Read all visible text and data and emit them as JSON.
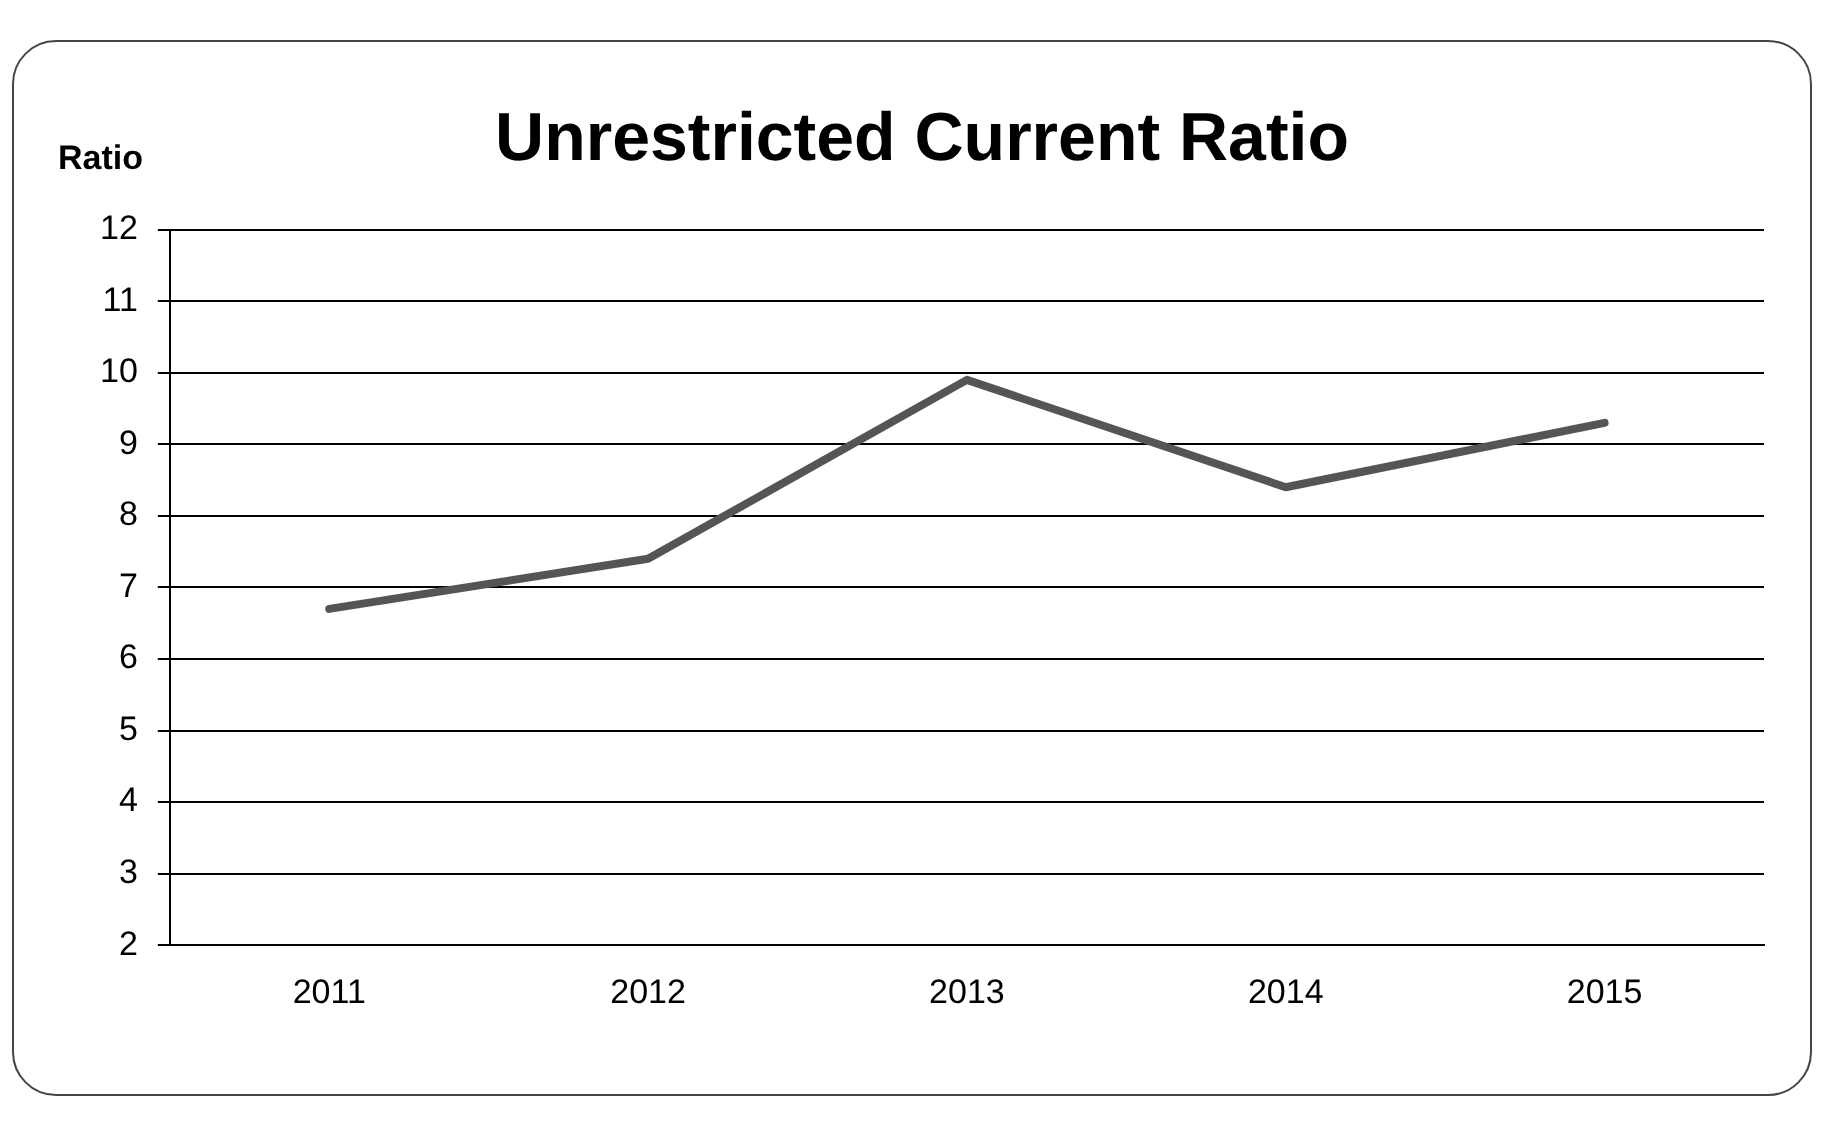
{
  "chart_data": {
    "type": "line",
    "title": "Unrestricted Current Ratio",
    "ylabel": "Ratio",
    "categories": [
      "2011",
      "2012",
      "2013",
      "2014",
      "2015"
    ],
    "series": [
      {
        "color": "#555555",
        "values": [
          6.7,
          7.4,
          9.9,
          8.4,
          9.3
        ]
      }
    ],
    "ylim": [
      2,
      12
    ],
    "yticks": [
      2,
      3,
      4,
      5,
      6,
      7,
      8,
      9,
      10,
      11,
      12
    ],
    "grid": "y",
    "legend": false,
    "marker": "none",
    "line_style": "solid"
  }
}
